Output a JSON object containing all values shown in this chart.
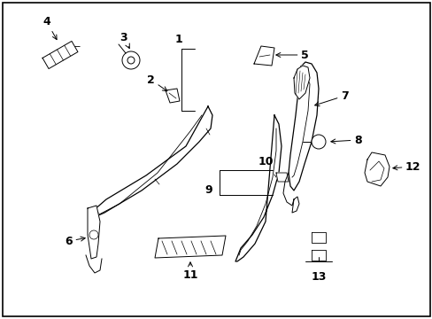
{
  "background_color": "#ffffff",
  "border_color": "#000000",
  "line_color": "#000000",
  "font_size": 9,
  "fig_width": 4.89,
  "fig_height": 3.6,
  "dpi": 100
}
